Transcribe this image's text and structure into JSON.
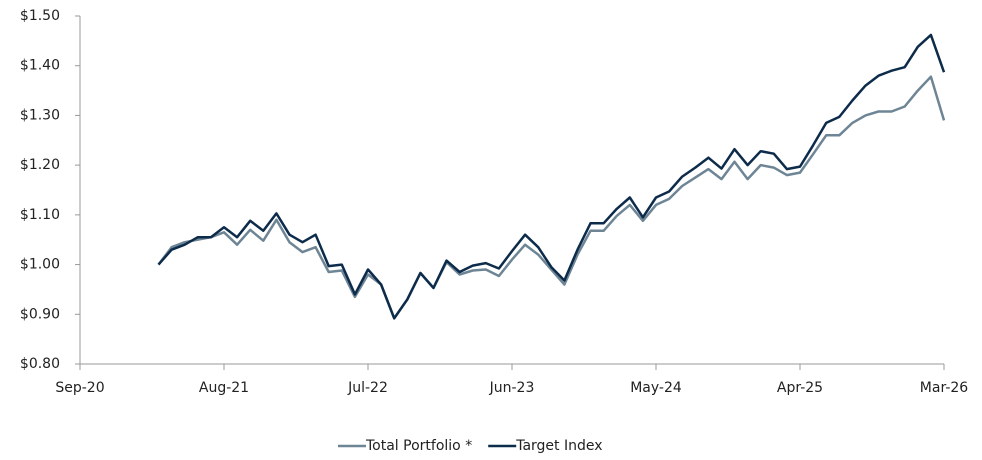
{
  "chart_data": {
    "type": "line",
    "categories": [
      "Sep-20",
      null,
      null,
      null,
      null,
      null,
      null,
      null,
      null,
      null,
      null,
      "Aug-21",
      null,
      null,
      null,
      null,
      null,
      null,
      null,
      null,
      null,
      null,
      "Jul-22",
      null,
      null,
      null,
      null,
      null,
      null,
      null,
      null,
      null,
      null,
      "Jun-23",
      null,
      null,
      null,
      null,
      null,
      null,
      null,
      null,
      null,
      null,
      "May-24",
      null,
      null,
      null,
      null,
      null,
      null,
      null,
      null,
      null,
      null,
      "Apr-25",
      null,
      null,
      null,
      null,
      null,
      null,
      null,
      null,
      null,
      null,
      "Mar-26"
    ],
    "series": [
      {
        "name": "Total Portfolio *",
        "color": "#6e8595",
        "values": [
          null,
          null,
          null,
          null,
          null,
          null,
          1.0,
          1.035,
          1.045,
          1.05,
          1.055,
          1.065,
          1.04,
          1.07,
          1.048,
          1.09,
          1.045,
          1.025,
          1.035,
          0.985,
          0.988,
          0.935,
          0.98,
          0.96,
          0.892,
          0.93,
          0.983,
          0.953,
          1.005,
          0.98,
          0.988,
          0.99,
          0.977,
          1.01,
          1.04,
          1.02,
          0.99,
          0.96,
          1.02,
          1.068,
          1.068,
          1.098,
          1.12,
          1.088,
          1.12,
          1.132,
          1.158,
          1.175,
          1.192,
          1.172,
          1.207,
          1.172,
          1.2,
          1.195,
          1.18,
          1.185,
          1.222,
          1.26,
          1.26,
          1.285,
          1.3,
          1.308,
          1.308,
          1.318,
          1.35,
          1.378,
          1.29
        ]
      },
      {
        "name": "Target Index",
        "color": "#0d2b4a",
        "values": [
          null,
          null,
          null,
          null,
          null,
          null,
          1.0,
          1.03,
          1.04,
          1.055,
          1.055,
          1.075,
          1.055,
          1.088,
          1.068,
          1.103,
          1.06,
          1.045,
          1.06,
          0.997,
          1.0,
          0.94,
          0.99,
          0.96,
          0.892,
          0.93,
          0.983,
          0.953,
          1.008,
          0.985,
          0.998,
          1.003,
          0.992,
          1.027,
          1.06,
          1.035,
          0.995,
          0.968,
          1.03,
          1.083,
          1.083,
          1.112,
          1.135,
          1.095,
          1.135,
          1.147,
          1.177,
          1.195,
          1.215,
          1.193,
          1.232,
          1.2,
          1.228,
          1.223,
          1.192,
          1.197,
          1.24,
          1.285,
          1.297,
          1.33,
          1.36,
          1.38,
          1.39,
          1.397,
          1.438,
          1.462,
          1.387
        ]
      }
    ],
    "ylim": [
      0.8,
      1.5
    ],
    "yticks": [
      {
        "value": 0.8,
        "label": "$0.80"
      },
      {
        "value": 0.9,
        "label": "$0.90"
      },
      {
        "value": 1.0,
        "label": "$1.00"
      },
      {
        "value": 1.1,
        "label": "$1.10"
      },
      {
        "value": 1.2,
        "label": "$1.20"
      },
      {
        "value": 1.3,
        "label": "$1.30"
      },
      {
        "value": 1.4,
        "label": "$1.40"
      },
      {
        "value": 1.5,
        "label": "$1.50"
      }
    ],
    "grid": false,
    "legend": "bottom"
  }
}
